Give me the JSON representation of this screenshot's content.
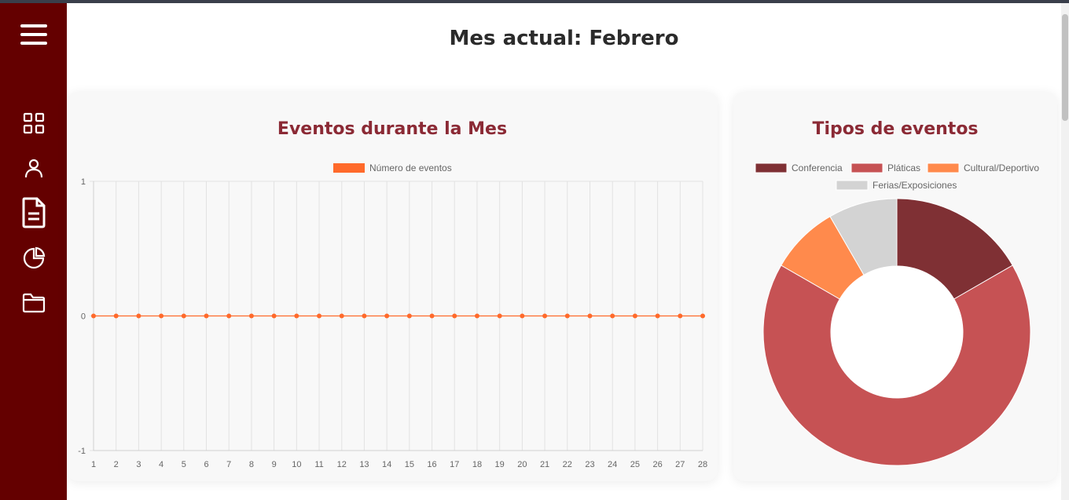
{
  "page": {
    "title": "Mes actual: Febrero"
  },
  "sidebar": {
    "items": [
      {
        "name": "menu-icon"
      },
      {
        "name": "dashboard-grid-icon"
      },
      {
        "name": "user-icon"
      },
      {
        "name": "document-icon"
      },
      {
        "name": "pie-chart-icon"
      },
      {
        "name": "folder-icon"
      }
    ]
  },
  "colors": {
    "sidebar": "#640000",
    "title_accent": "#8b2a35",
    "line": "#ff6a2b",
    "conferencia": "#7f3034",
    "platicas": "#c65254",
    "cultural": "#ff8a4c",
    "ferias": "#d3d3d3"
  },
  "line_card": {
    "title": "Eventos durante la Mes"
  },
  "pie_card": {
    "title": "Tipos de eventos"
  },
  "chart_data": [
    {
      "type": "line",
      "series": [
        {
          "name": "Número de eventos",
          "values": [
            0,
            0,
            0,
            0,
            0,
            0,
            0,
            0,
            0,
            0,
            0,
            0,
            0,
            0,
            0,
            0,
            0,
            0,
            0,
            0,
            0,
            0,
            0,
            0,
            0,
            0,
            0,
            0
          ]
        }
      ],
      "x": [
        "1",
        "2",
        "3",
        "4",
        "5",
        "6",
        "7",
        "8",
        "9",
        "10",
        "11",
        "12",
        "13",
        "14",
        "15",
        "16",
        "17",
        "18",
        "19",
        "20",
        "21",
        "22",
        "23",
        "24",
        "25",
        "26",
        "27",
        "28"
      ],
      "ylim": [
        -1,
        1
      ],
      "yticks": [
        "1",
        "0",
        "-1"
      ],
      "grid": true,
      "legend": "top"
    },
    {
      "type": "pie",
      "labels": [
        "Conferencia",
        "Pláticas",
        "Cultural/Deportivo",
        "Ferias/Exposiciones"
      ],
      "values": [
        1,
        4,
        0.5,
        0.5
      ],
      "legend": "top"
    }
  ]
}
